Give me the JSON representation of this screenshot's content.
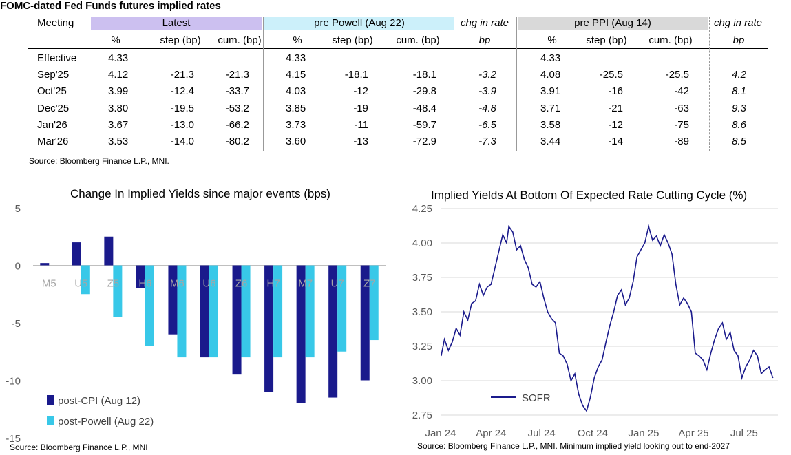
{
  "table": {
    "title": "FOMC-dated Fed Funds futures implied rates",
    "col_meeting": "Meeting",
    "groups": {
      "latest": "Latest",
      "pre_powell": "pre Powell (Aug 22)",
      "chg1": "chg in rate",
      "pre_ppi": "pre PPI (Aug 14)",
      "chg2": "chg in rate"
    },
    "sub": {
      "pct": "%",
      "step": "step (bp)",
      "cum": "cum. (bp)",
      "bp": "bp"
    },
    "header_colors": {
      "latest": "#ccc0f0",
      "pre_powell": "#ccf0fa",
      "pre_ppi": "#d9d9d9"
    },
    "rows": [
      {
        "meeting": "Effective",
        "l_pct": "4.33",
        "l_step": "",
        "l_cum": "",
        "p_pct": "4.33",
        "p_step": "",
        "p_cum": "",
        "chg1": "",
        "q_pct": "4.33",
        "q_step": "",
        "q_cum": "",
        "chg2": ""
      },
      {
        "meeting": "Sep'25",
        "l_pct": "4.12",
        "l_step": "-21.3",
        "l_cum": "-21.3",
        "p_pct": "4.15",
        "p_step": "-18.1",
        "p_cum": "-18.1",
        "chg1": "-3.2",
        "q_pct": "4.08",
        "q_step": "-25.5",
        "q_cum": "-25.5",
        "chg2": "4.2"
      },
      {
        "meeting": "Oct'25",
        "l_pct": "3.99",
        "l_step": "-12.4",
        "l_cum": "-33.7",
        "p_pct": "4.03",
        "p_step": "-12",
        "p_cum": "-29.8",
        "chg1": "-3.9",
        "q_pct": "3.91",
        "q_step": "-16",
        "q_cum": "-42",
        "chg2": "8.1"
      },
      {
        "meeting": "Dec'25",
        "l_pct": "3.80",
        "l_step": "-19.5",
        "l_cum": "-53.2",
        "p_pct": "3.85",
        "p_step": "-19",
        "p_cum": "-48.4",
        "chg1": "-4.8",
        "q_pct": "3.71",
        "q_step": "-21",
        "q_cum": "-63",
        "chg2": "9.3"
      },
      {
        "meeting": "Jan'26",
        "l_pct": "3.67",
        "l_step": "-13.0",
        "l_cum": "-66.2",
        "p_pct": "3.73",
        "p_step": "-11",
        "p_cum": "-59.7",
        "chg1": "-6.5",
        "q_pct": "3.58",
        "q_step": "-12",
        "q_cum": "-75",
        "chg2": "8.6"
      },
      {
        "meeting": "Mar'26",
        "l_pct": "3.53",
        "l_step": "-14.0",
        "l_cum": "-80.2",
        "p_pct": "3.60",
        "p_step": "-13",
        "p_cum": "-72.9",
        "chg1": "-7.3",
        "q_pct": "3.44",
        "q_step": "-14",
        "q_cum": "-89",
        "chg2": "8.5"
      }
    ],
    "source": "Source: Bloomberg Finance L.P., MNI."
  },
  "chart_data": [
    {
      "type": "bar",
      "title": "Change In Implied Yields since major events (bps)",
      "categories": [
        "M5",
        "U5",
        "Z5",
        "H6",
        "M6",
        "U6",
        "Z6",
        "H7",
        "M7",
        "U7",
        "Z7"
      ],
      "series": [
        {
          "name": "post-CPI (Aug 12)",
          "color": "#1a1a8c",
          "values": [
            0.2,
            2.0,
            2.5,
            -2.0,
            -6.0,
            -8.0,
            -9.5,
            -11.0,
            -12.0,
            -11.5,
            -10.0
          ]
        },
        {
          "name": "post-Powell (Aug 22)",
          "color": "#38c8e8",
          "values": [
            0,
            -2.5,
            -4.5,
            -7.0,
            -8.0,
            -8.0,
            -8.0,
            -8.0,
            -8.0,
            -7.5,
            -6.5
          ]
        }
      ],
      "ylim": [
        -15,
        5
      ],
      "yticks": [
        "5",
        "0",
        "-5",
        "-10",
        "-15"
      ],
      "legend": "bottom-left",
      "source": "Source: Bloomberg Finance L.P., MNI"
    },
    {
      "type": "line",
      "title": "Implied Yields At Bottom Of Expected Rate Cutting Cycle (%)",
      "series": [
        {
          "name": "SOFR",
          "color": "#1a1a8c",
          "points": [
            [
              "2024-01-02",
              3.18
            ],
            [
              "2024-01-08",
              3.3
            ],
            [
              "2024-01-15",
              3.22
            ],
            [
              "2024-01-22",
              3.28
            ],
            [
              "2024-01-29",
              3.38
            ],
            [
              "2024-02-05",
              3.33
            ],
            [
              "2024-02-12",
              3.5
            ],
            [
              "2024-02-19",
              3.44
            ],
            [
              "2024-02-26",
              3.56
            ],
            [
              "2024-03-04",
              3.58
            ],
            [
              "2024-03-11",
              3.7
            ],
            [
              "2024-03-18",
              3.62
            ],
            [
              "2024-03-25",
              3.68
            ],
            [
              "2024-04-01",
              3.7
            ],
            [
              "2024-04-08",
              3.82
            ],
            [
              "2024-04-15",
              3.94
            ],
            [
              "2024-04-22",
              4.06
            ],
            [
              "2024-04-29",
              4.0
            ],
            [
              "2024-05-03",
              4.12
            ],
            [
              "2024-05-10",
              4.08
            ],
            [
              "2024-05-17",
              3.95
            ],
            [
              "2024-05-24",
              3.98
            ],
            [
              "2024-05-31",
              3.88
            ],
            [
              "2024-06-07",
              3.82
            ],
            [
              "2024-06-14",
              3.7
            ],
            [
              "2024-06-21",
              3.68
            ],
            [
              "2024-06-28",
              3.72
            ],
            [
              "2024-07-05",
              3.6
            ],
            [
              "2024-07-12",
              3.5
            ],
            [
              "2024-07-19",
              3.45
            ],
            [
              "2024-07-26",
              3.42
            ],
            [
              "2024-08-02",
              3.2
            ],
            [
              "2024-08-09",
              3.18
            ],
            [
              "2024-08-16",
              3.12
            ],
            [
              "2024-08-23",
              3.0
            ],
            [
              "2024-08-30",
              3.05
            ],
            [
              "2024-09-06",
              2.9
            ],
            [
              "2024-09-13",
              2.82
            ],
            [
              "2024-09-20",
              2.78
            ],
            [
              "2024-09-27",
              2.88
            ],
            [
              "2024-10-04",
              3.02
            ],
            [
              "2024-10-11",
              3.1
            ],
            [
              "2024-10-18",
              3.15
            ],
            [
              "2024-10-25",
              3.28
            ],
            [
              "2024-11-01",
              3.4
            ],
            [
              "2024-11-08",
              3.5
            ],
            [
              "2024-11-15",
              3.62
            ],
            [
              "2024-11-22",
              3.66
            ],
            [
              "2024-11-29",
              3.55
            ],
            [
              "2024-12-06",
              3.6
            ],
            [
              "2024-12-13",
              3.72
            ],
            [
              "2024-12-20",
              3.9
            ],
            [
              "2024-12-27",
              3.95
            ],
            [
              "2025-01-03",
              4.0
            ],
            [
              "2025-01-10",
              4.12
            ],
            [
              "2025-01-17",
              4.02
            ],
            [
              "2025-01-24",
              4.05
            ],
            [
              "2025-01-31",
              3.98
            ],
            [
              "2025-02-07",
              4.06
            ],
            [
              "2025-02-14",
              4.0
            ],
            [
              "2025-02-21",
              3.92
            ],
            [
              "2025-02-28",
              3.7
            ],
            [
              "2025-03-07",
              3.55
            ],
            [
              "2025-03-14",
              3.6
            ],
            [
              "2025-03-21",
              3.56
            ],
            [
              "2025-03-28",
              3.5
            ],
            [
              "2025-04-04",
              3.2
            ],
            [
              "2025-04-11",
              3.18
            ],
            [
              "2025-04-18",
              3.15
            ],
            [
              "2025-04-25",
              3.08
            ],
            [
              "2025-05-02",
              3.2
            ],
            [
              "2025-05-09",
              3.3
            ],
            [
              "2025-05-16",
              3.38
            ],
            [
              "2025-05-23",
              3.42
            ],
            [
              "2025-05-30",
              3.3
            ],
            [
              "2025-06-06",
              3.35
            ],
            [
              "2025-06-13",
              3.22
            ],
            [
              "2025-06-20",
              3.18
            ],
            [
              "2025-06-27",
              3.02
            ],
            [
              "2025-07-04",
              3.1
            ],
            [
              "2025-07-11",
              3.15
            ],
            [
              "2025-07-18",
              3.22
            ],
            [
              "2025-07-25",
              3.18
            ],
            [
              "2025-08-01",
              3.05
            ],
            [
              "2025-08-08",
              3.08
            ],
            [
              "2025-08-15",
              3.1
            ],
            [
              "2025-08-22",
              3.02
            ]
          ]
        }
      ],
      "ylim": [
        2.75,
        4.25
      ],
      "yticks": [
        "4.25",
        "4.00",
        "3.75",
        "3.50",
        "3.25",
        "3.00",
        "2.75"
      ],
      "xticks": [
        "Jan 24",
        "Apr 24",
        "Jul 24",
        "Oct 24",
        "Jan 25",
        "Apr 25",
        "Jul 25"
      ],
      "xtick_dates": [
        "2024-01-01",
        "2024-04-01",
        "2024-07-01",
        "2024-10-01",
        "2025-01-01",
        "2025-04-01",
        "2025-07-01"
      ],
      "xlim": [
        "2024-01-01",
        "2025-08-31"
      ],
      "legend": "lower-left",
      "source": "Source: Bloomberg Finance L.P., MNI. Minimum implied yield looking out to end-2027"
    }
  ]
}
